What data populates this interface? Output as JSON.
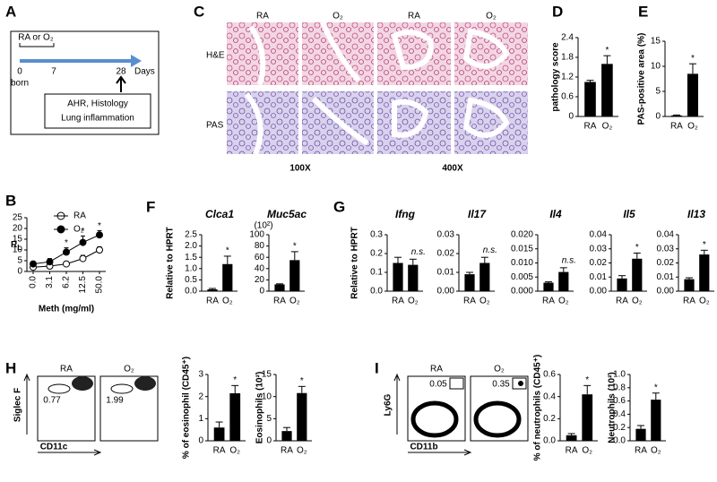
{
  "panels": [
    "A",
    "B",
    "C",
    "D",
    "E",
    "F",
    "G",
    "H",
    "I"
  ],
  "diagram": {
    "exposure": "RA or O₂",
    "days": [
      "0",
      "7",
      "28"
    ],
    "days_label": "Days",
    "birth": "born",
    "readouts": [
      "AHR, Histology",
      "Lung inflammation"
    ]
  },
  "histology": {
    "columns": [
      "RA",
      "O₂",
      "RA",
      "O₂"
    ],
    "rows": [
      "H&E",
      "PAS"
    ],
    "magnifications": [
      "100X",
      "400X"
    ]
  },
  "flow": [
    {
      "xlabel": "CD11c",
      "ylabel": "Siglec F",
      "groups": [
        "RA",
        "O₂"
      ],
      "gate_values": [
        "0.77",
        "1.99"
      ]
    },
    {
      "xlabel": "CD11b",
      "ylabel": "Ly6G",
      "groups": [
        "RA",
        "O₂"
      ],
      "gate_values": [
        "0.05",
        "0.35"
      ]
    }
  ],
  "chart_data": [
    {
      "type": "line",
      "ylabel": {
        "text": "R",
        "sub": "L"
      },
      "xlabel": "Meth (mg/ml)",
      "categories": [
        "0.0",
        "3.1",
        "6.2",
        "12.5",
        "50.0"
      ],
      "series": [
        {
          "name": "RA",
          "color": "#000000",
          "filled": false,
          "values": [
            2,
            2.5,
            3.5,
            6,
            10
          ],
          "errors": [
            1,
            0.8,
            1,
            1.5,
            1.5
          ]
        },
        {
          "name": "O₂",
          "color": "#000000",
          "filled": true,
          "values": [
            3.5,
            4.5,
            9,
            13.5,
            17
          ],
          "errors": [
            1,
            1.5,
            2,
            3,
            2
          ]
        }
      ],
      "significance": [
        null,
        null,
        "*",
        "*",
        "*"
      ],
      "ylim": [
        0,
        25
      ],
      "yticks": [
        0,
        5,
        10,
        15,
        20,
        25
      ],
      "legend": "top-left"
    },
    {
      "type": "bar",
      "ylabel": "pathology score",
      "categories": [
        "RA",
        "O₂"
      ],
      "values": [
        1.05,
        1.6
      ],
      "errors": [
        0.05,
        0.25
      ],
      "significance": [
        null,
        "*"
      ],
      "color": "#000000",
      "ylim": [
        0,
        2.4
      ],
      "yticks": [
        0,
        0.6,
        1.2,
        1.8,
        2.4
      ]
    },
    {
      "type": "bar",
      "ylabel": "PAS-positive area (%)",
      "categories": [
        "RA",
        "O₂"
      ],
      "values": [
        0.2,
        8.5
      ],
      "errors": [
        0.1,
        2
      ],
      "significance": [
        null,
        "*"
      ],
      "color": "#000000",
      "ylim": [
        0,
        15
      ],
      "yticks": [
        0,
        5,
        10,
        15
      ]
    },
    {
      "type": "bar",
      "title": "Clca1",
      "ylabel": "Relative to HPRT",
      "categories": [
        "RA",
        "O₂"
      ],
      "values": [
        0.08,
        1.2
      ],
      "errors": [
        0.04,
        0.35
      ],
      "significance": [
        null,
        "*"
      ],
      "color": "#000000",
      "ylim": [
        0,
        2.5
      ],
      "yticks": [
        {
          "value": 0,
          "label": "0.0"
        },
        0.5,
        {
          "value": 1,
          "label": "1.0"
        },
        1.5,
        {
          "value": 2,
          "label": "2.0"
        },
        2.5
      ]
    },
    {
      "type": "bar",
      "title": "Muc5ac",
      "unit": "(10²)",
      "categories": [
        "RA",
        "O₂"
      ],
      "values": [
        12,
        55
      ],
      "errors": [
        1,
        15
      ],
      "significance": [
        null,
        "*"
      ],
      "color": "#000000",
      "ylim": [
        0,
        100
      ],
      "yticks": [
        0,
        20,
        40,
        60,
        80,
        100
      ]
    },
    {
      "type": "bar",
      "title": "Ifng",
      "ylabel": "Relative to HPRT",
      "categories": [
        "RA",
        "O₂"
      ],
      "values": [
        0.15,
        0.14
      ],
      "errors": [
        0.03,
        0.03
      ],
      "significance": [
        null,
        "n.s."
      ],
      "color": "#000000",
      "ylim": [
        0,
        0.3
      ],
      "yticks": [
        {
          "value": 0,
          "label": "0.0"
        },
        0.1,
        0.2,
        0.3
      ]
    },
    {
      "type": "bar",
      "title": "Il17",
      "categories": [
        "RA",
        "O₂"
      ],
      "values": [
        0.009,
        0.015
      ],
      "errors": [
        0.001,
        0.003
      ],
      "significance": [
        null,
        "n.s."
      ],
      "color": "#000000",
      "ylim": [
        0,
        0.03
      ],
      "yticks": [
        {
          "value": 0,
          "label": "0.00"
        },
        0.01,
        0.02,
        0.03
      ]
    },
    {
      "type": "bar",
      "title": "Il4",
      "categories": [
        "RA",
        "O₂"
      ],
      "values": [
        0.003,
        0.0068
      ],
      "errors": [
        0.0003,
        0.0015
      ],
      "significance": [
        null,
        "n.s."
      ],
      "color": "#000000",
      "ylim": [
        0,
        0.02
      ],
      "yticks": [
        {
          "value": 0,
          "label": "0.000"
        },
        0.005,
        {
          "value": 0.01,
          "label": "0.010"
        },
        0.015,
        {
          "value": 0.02,
          "label": "0.020"
        }
      ]
    },
    {
      "type": "bar",
      "title": "Il5",
      "categories": [
        "RA",
        "O₂"
      ],
      "values": [
        0.009,
        0.023
      ],
      "errors": [
        0.002,
        0.004
      ],
      "significance": [
        null,
        "*"
      ],
      "color": "#000000",
      "ylim": [
        0,
        0.04
      ],
      "yticks": [
        {
          "value": 0,
          "label": "0.00"
        },
        0.01,
        0.02,
        0.03,
        0.04
      ]
    },
    {
      "type": "bar",
      "title": "Il13",
      "categories": [
        "RA",
        "O₂"
      ],
      "values": [
        0.0085,
        0.026
      ],
      "errors": [
        0.001,
        0.003
      ],
      "significance": [
        null,
        "*"
      ],
      "color": "#000000",
      "ylim": [
        0,
        0.04
      ],
      "yticks": [
        {
          "value": 0,
          "label": "0.00"
        },
        0.01,
        0.02,
        0.03,
        0.04
      ]
    },
    {
      "type": "bar",
      "ylabel": "% of eosinophil (CD45⁺)",
      "categories": [
        "RA",
        "O₂"
      ],
      "values": [
        0.6,
        2.15
      ],
      "errors": [
        0.25,
        0.35
      ],
      "significance": [
        null,
        "*"
      ],
      "color": "#000000",
      "ylim": [
        0,
        3
      ],
      "yticks": [
        0,
        1,
        2,
        3
      ]
    },
    {
      "type": "bar",
      "ylabel": "Eosinophils (10²)",
      "categories": [
        "RA",
        "O₂"
      ],
      "values": [
        2.2,
        10.8
      ],
      "errors": [
        0.8,
        1.5
      ],
      "significance": [
        null,
        "*"
      ],
      "color": "#000000",
      "ylim": [
        0,
        15
      ],
      "yticks": [
        0,
        5,
        10,
        15
      ]
    },
    {
      "type": "bar",
      "ylabel": "% of neutrophils (CD45⁺)",
      "categories": [
        "RA",
        "O₂"
      ],
      "values": [
        0.05,
        0.42
      ],
      "errors": [
        0.015,
        0.08
      ],
      "significance": [
        null,
        "*"
      ],
      "color": "#000000",
      "ylim": [
        0,
        0.6
      ],
      "yticks": [
        {
          "value": 0,
          "label": "0.0"
        },
        0.2,
        0.4,
        0.6
      ]
    },
    {
      "type": "bar",
      "ylabel": "Neutrophils (10²)",
      "categories": [
        "RA",
        "O₂"
      ],
      "values": [
        0.18,
        0.62
      ],
      "errors": [
        0.05,
        0.1
      ],
      "significance": [
        null,
        "*"
      ],
      "color": "#000000",
      "ylim": [
        0,
        1
      ],
      "yticks": [
        {
          "value": 0,
          "label": "0.0"
        },
        0.2,
        0.4,
        0.6,
        0.8,
        {
          "value": 1,
          "label": "1.0"
        }
      ]
    }
  ]
}
